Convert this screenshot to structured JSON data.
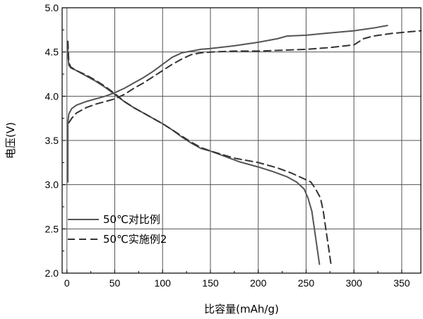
{
  "chart_data": {
    "type": "line",
    "title": "",
    "xlabel": "比容量(mAh/g)",
    "ylabel": "电压(V)",
    "xlim": [
      -5,
      370
    ],
    "ylim": [
      2.0,
      5.0
    ],
    "xticks": [
      0,
      50,
      100,
      150,
      200,
      250,
      300,
      350
    ],
    "yticks": [
      2.0,
      2.5,
      3.0,
      3.5,
      4.0,
      4.5,
      5.0
    ],
    "xtick_labels": [
      "0",
      "50",
      "100",
      "150",
      "200",
      "250",
      "300",
      "350"
    ],
    "ytick_labels": [
      "2.0",
      "2.5",
      "3.0",
      "3.5",
      "4.0",
      "4.5",
      "5.0"
    ],
    "grid": true,
    "legend_position": "bottom-left",
    "series": [
      {
        "name": "50℃对比例",
        "style": "solid",
        "color": "#555555",
        "segments": [
          {
            "x": [
              1,
              1,
              2,
              5,
              10,
              20,
              30,
              40,
              50,
              60,
              70,
              80,
              90,
              100,
              110,
              120,
              130,
              140,
              150,
              175,
              200,
              220,
              230,
              250,
              270,
              300,
              320,
              335
            ],
            "y": [
              3.03,
              3.7,
              3.8,
              3.86,
              3.9,
              3.94,
              3.97,
              4.0,
              4.04,
              4.09,
              4.15,
              4.21,
              4.28,
              4.36,
              4.44,
              4.49,
              4.51,
              4.53,
              4.54,
              4.57,
              4.61,
              4.65,
              4.68,
              4.69,
              4.71,
              4.74,
              4.77,
              4.8
            ]
          },
          {
            "x": [
              1,
              1,
              2,
              4,
              10,
              20,
              30,
              40,
              50,
              60,
              70,
              80,
              90,
              100,
              110,
              120,
              130,
              140,
              150,
              165,
              180,
              200,
              215,
              230,
              240,
              248,
              252,
              256,
              258,
              260,
              262,
              264
            ],
            "y": [
              4.62,
              4.45,
              4.35,
              4.32,
              4.29,
              4.23,
              4.17,
              4.1,
              4.02,
              3.94,
              3.87,
              3.81,
              3.75,
              3.69,
              3.62,
              3.54,
              3.47,
              3.41,
              3.38,
              3.32,
              3.26,
              3.2,
              3.15,
              3.09,
              3.03,
              2.95,
              2.85,
              2.7,
              2.55,
              2.4,
              2.25,
              2.1
            ]
          }
        ]
      },
      {
        "name": "50℃实施例2",
        "style": "dashed",
        "color": "#333333",
        "segments": [
          {
            "x": [
              2,
              5,
              10,
              20,
              30,
              40,
              50,
              60,
              70,
              80,
              90,
              100,
              110,
              120,
              130,
              140,
              150,
              175,
              200,
              225,
              250,
              275,
              300,
              310,
              320,
              340,
              360,
              370
            ],
            "y": [
              3.7,
              3.75,
              3.81,
              3.87,
              3.91,
              3.94,
              3.97,
              4.02,
              4.09,
              4.15,
              4.22,
              4.29,
              4.36,
              4.42,
              4.47,
              4.49,
              4.5,
              4.51,
              4.51,
              4.52,
              4.53,
              4.55,
              4.58,
              4.65,
              4.68,
              4.71,
              4.73,
              4.74
            ]
          },
          {
            "x": [
              1,
              2,
              4,
              10,
              20,
              30,
              40,
              50,
              60,
              70,
              80,
              90,
              100,
              110,
              120,
              130,
              140,
              150,
              175,
              200,
              220,
              235,
              245,
              255,
              260,
              265,
              268,
              270,
              272,
              274,
              276
            ],
            "y": [
              4.62,
              4.38,
              4.33,
              4.29,
              4.24,
              4.18,
              4.11,
              4.03,
              3.94,
              3.87,
              3.81,
              3.75,
              3.69,
              3.62,
              3.55,
              3.48,
              3.42,
              3.38,
              3.3,
              3.25,
              3.19,
              3.13,
              3.08,
              3.03,
              2.95,
              2.85,
              2.7,
              2.55,
              2.4,
              2.25,
              2.1
            ]
          }
        ]
      }
    ]
  }
}
